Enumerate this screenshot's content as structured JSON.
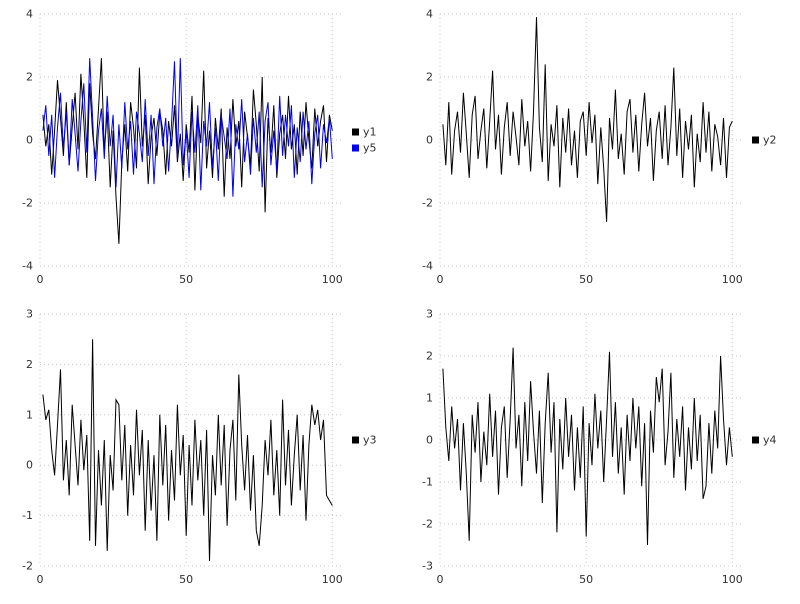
{
  "page": {
    "background": "#ffffff",
    "grid_color": "#c8c8c8",
    "tick_text_color": "#303030"
  },
  "chart_data": [
    {
      "type": "line",
      "title": "",
      "xlabel": "",
      "ylabel": "",
      "grid": true,
      "legend_position": "right",
      "x_start": 1,
      "x_step": 1,
      "xlim": [
        0,
        104
      ],
      "xticks": [
        0,
        50,
        100
      ],
      "ylim": [
        -4,
        4
      ],
      "yticks": [
        -4,
        -2,
        0,
        2,
        4
      ],
      "series": [
        {
          "name": "y1",
          "color": "#000000",
          "values": [
            0.8,
            -0.2,
            0.5,
            -1.1,
            0.3,
            1.9,
            0.7,
            -0.5,
            1.2,
            -0.8,
            0.4,
            1.5,
            -0.3,
            2.1,
            0.6,
            -1.2,
            1.8,
            0.2,
            -0.6,
            1.0,
            2.6,
            -0.4,
            0.9,
            -1.5,
            0.3,
            -1.8,
            -3.3,
            -0.7,
            0.5,
            -1.0,
            1.2,
            0.4,
            -0.9,
            2.3,
            -0.2,
            0.8,
            -1.4,
            0.1,
            0.7,
            -0.5,
            0.9,
            0.3,
            -1.1,
            0.6,
            -0.2,
            1.1,
            -0.7,
            0.2,
            -1.3,
            0.5,
            -0.4,
            1.4,
            -1.6,
            0.8,
            -0.1,
            2.2,
            -0.9,
            0.3,
            -1.2,
            0.7,
            -0.3,
            1.0,
            -1.8,
            0.4,
            -0.6,
            1.3,
            -0.2,
            0.6,
            -1.5,
            0.9,
            0.1,
            -0.8,
            1.6,
            0.5,
            -1.0,
            2.0,
            -2.3,
            0.7,
            -0.4,
            1.1,
            -1.2,
            0.2,
            0.8,
            -0.6,
            1.4,
            -0.3,
            0.5,
            -1.1,
            0.9,
            -0.5,
            1.2,
            0.0,
            -0.9,
            1.0,
            -0.2,
            0.6,
            1.1,
            -0.7,
            0.8,
            0.3
          ]
        },
        {
          "name": "y5",
          "color": "#0000ee",
          "values": [
            0.3,
            1.1,
            -0.5,
            0.8,
            -1.2,
            0.4,
            1.5,
            -0.3,
            0.9,
            -0.8,
            1.3,
            0.2,
            -1.0,
            0.6,
            1.8,
            -0.4,
            2.6,
            0.7,
            -1.3,
            0.3,
            1.0,
            -0.6,
            1.4,
            -0.2,
            0.8,
            -1.5,
            0.5,
            -0.9,
            1.2,
            -0.3,
            0.6,
            -1.1,
            0.9,
            0.2,
            -0.7,
            1.3,
            -0.5,
            0.8,
            -1.4,
            0.4,
            1.0,
            -0.2,
            0.7,
            -1.0,
            0.5,
            2.5,
            -0.6,
            2.6,
            -0.8,
            0.3,
            -1.2,
            0.9,
            -0.4,
            1.1,
            -1.6,
            0.6,
            -0.2,
            1.2,
            -0.9,
            0.4,
            -1.3,
            0.8,
            0.1,
            -0.6,
            1.0,
            -1.8,
            0.5,
            -0.3,
            1.3,
            -0.7,
            0.2,
            -1.1,
            0.7,
            -0.4,
            0.9,
            -1.5,
            0.6,
            1.2,
            -0.8,
            0.3,
            -1.0,
            1.4,
            -0.5,
            0.8,
            -0.2,
            1.1,
            -1.2,
            0.4,
            -0.7,
            0.9,
            -0.3,
            0.6,
            -1.4,
            0.2,
            0.8,
            -0.9,
            0.5,
            -0.1,
            0.7,
            -0.6
          ]
        }
      ]
    },
    {
      "type": "line",
      "title": "",
      "xlabel": "",
      "ylabel": "",
      "grid": true,
      "legend_position": "right",
      "x_start": 1,
      "x_step": 1,
      "xlim": [
        0,
        104
      ],
      "xticks": [
        0,
        50,
        100
      ],
      "ylim": [
        -4,
        4
      ],
      "yticks": [
        -4,
        -2,
        0,
        2,
        4
      ],
      "series": [
        {
          "name": "y2",
          "color": "#000000",
          "values": [
            0.5,
            -0.8,
            1.2,
            -1.1,
            0.3,
            0.9,
            -0.4,
            1.5,
            0.2,
            -1.2,
            0.8,
            1.4,
            -0.6,
            0.3,
            1.0,
            -0.9,
            0.6,
            2.2,
            -0.3,
            0.8,
            -1.1,
            0.4,
            1.2,
            -0.5,
            0.9,
            0.1,
            -0.8,
            1.3,
            -0.2,
            0.6,
            -1.0,
            0.9,
            3.9,
            0.4,
            -0.7,
            2.4,
            -1.3,
            0.5,
            -0.2,
            1.1,
            -1.5,
            0.7,
            -0.4,
            1.0,
            -0.8,
            0.3,
            -1.2,
            0.6,
            0.9,
            -0.5,
            1.2,
            -0.1,
            0.8,
            -1.4,
            0.4,
            -0.9,
            -2.6,
            0.7,
            -0.3,
            1.6,
            -0.6,
            0.2,
            -1.1,
            0.9,
            1.3,
            -0.4,
            0.8,
            -1.0,
            0.5,
            1.5,
            -0.2,
            0.7,
            -1.3,
            0.3,
            0.9,
            -0.6,
            1.1,
            -0.8,
            0.4,
            2.3,
            -0.5,
            1.0,
            -1.2,
            0.6,
            -0.3,
            0.8,
            -1.5,
            0.2,
            -0.7,
            1.2,
            -0.4,
            0.9,
            -1.0,
            0.5,
            0.1,
            -0.8,
            0.7,
            -1.2,
            0.4,
            0.6
          ]
        }
      ]
    },
    {
      "type": "line",
      "title": "",
      "xlabel": "",
      "ylabel": "",
      "grid": true,
      "legend_position": "right",
      "x_start": 1,
      "x_step": 1,
      "xlim": [
        0,
        104
      ],
      "xticks": [
        0,
        50,
        100
      ],
      "ylim": [
        -2,
        3
      ],
      "yticks": [
        -2,
        -1,
        0,
        1,
        2,
        3
      ],
      "series": [
        {
          "name": "y3",
          "color": "#000000",
          "values": [
            1.4,
            0.9,
            1.1,
            0.3,
            -0.2,
            0.8,
            1.9,
            -0.3,
            0.5,
            -0.6,
            1.2,
            0.4,
            -0.4,
            0.9,
            -0.1,
            0.6,
            -1.5,
            2.5,
            -1.6,
            0.3,
            -0.8,
            0.5,
            -1.7,
            0.2,
            -0.5,
            1.3,
            1.2,
            -0.3,
            0.8,
            -1.0,
            0.4,
            -0.6,
            1.1,
            -0.2,
            0.7,
            -1.3,
            0.5,
            -0.9,
            0.2,
            -1.5,
            1.0,
            -0.4,
            0.8,
            -1.1,
            0.3,
            -0.7,
            1.2,
            -0.2,
            0.6,
            -1.4,
            0.4,
            -0.8,
            0.9,
            -0.3,
            0.5,
            -1.0,
            0.7,
            -1.9,
            0.2,
            -0.6,
            1.0,
            -0.4,
            0.8,
            -1.2,
            0.3,
            0.9,
            -0.7,
            1.8,
            0.4,
            -0.5,
            0.6,
            -0.9,
            0.2,
            -1.3,
            -1.6,
            -0.8,
            0.5,
            -0.2,
            0.9,
            -0.6,
            0.3,
            -1.0,
            1.3,
            -0.4,
            0.7,
            -0.8,
            0.2,
            1.0,
            -0.5,
            0.6,
            -1.1,
            0.4,
            1.2,
            0.8,
            1.1,
            0.5,
            0.9,
            -0.6,
            -0.7,
            -0.8
          ]
        }
      ]
    },
    {
      "type": "line",
      "title": "",
      "xlabel": "",
      "ylabel": "",
      "grid": true,
      "legend_position": "right",
      "x_start": 1,
      "x_step": 1,
      "xlim": [
        0,
        104
      ],
      "xticks": [
        0,
        50,
        100
      ],
      "ylim": [
        -3,
        3
      ],
      "yticks": [
        -3,
        -2,
        -1,
        0,
        1,
        2,
        3
      ],
      "series": [
        {
          "name": "y4",
          "color": "#000000",
          "values": [
            1.7,
            0.3,
            -0.5,
            0.8,
            -0.2,
            0.5,
            -1.2,
            0.4,
            -0.8,
            -2.4,
            0.6,
            -0.3,
            0.9,
            -1.0,
            0.2,
            -0.6,
            1.1,
            -0.4,
            0.7,
            -1.3,
            0.3,
            0.8,
            -0.9,
            0.5,
            2.2,
            -0.2,
            0.6,
            -1.1,
            0.9,
            -0.5,
            1.4,
            0.2,
            -0.8,
            0.7,
            -1.5,
            0.4,
            1.6,
            -0.3,
            0.9,
            -2.2,
            0.5,
            -0.7,
            1.0,
            -0.4,
            0.6,
            -1.2,
            0.3,
            -0.9,
            0.8,
            -2.3,
            0.4,
            -0.6,
            1.1,
            -0.2,
            0.7,
            -1.0,
            0.5,
            2.1,
            -0.4,
            0.9,
            -0.8,
            0.3,
            -1.3,
            0.6,
            -0.5,
            1.0,
            -0.2,
            0.8,
            -1.1,
            0.4,
            -2.5,
            0.7,
            -0.3,
            1.5,
            0.9,
            1.7,
            -0.6,
            0.2,
            1.6,
            -0.9,
            0.5,
            -0.4,
            0.8,
            -1.2,
            0.3,
            -0.7,
            1.0,
            -0.5,
            0.6,
            -1.4,
            -1.1,
            0.4,
            -0.8,
            0.7,
            -0.2,
            2.0,
            0.5,
            -0.6,
            0.3,
            -0.4
          ]
        }
      ]
    }
  ]
}
